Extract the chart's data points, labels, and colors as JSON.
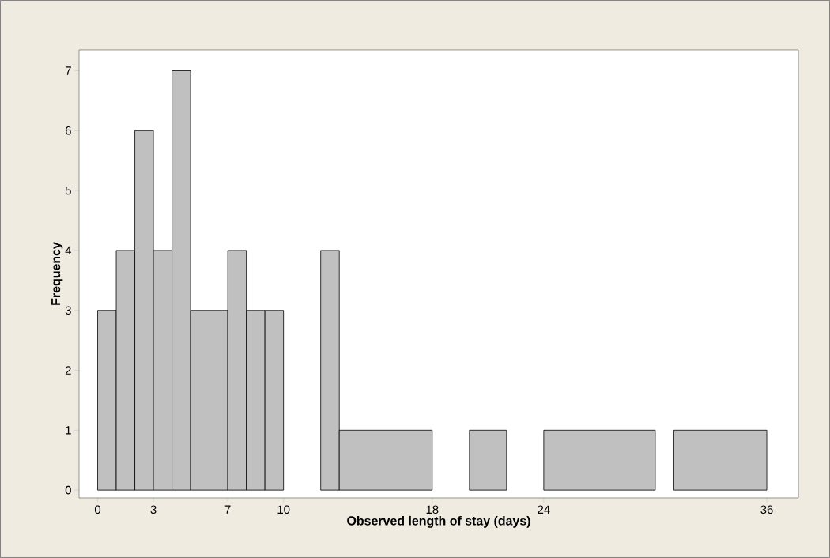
{
  "chart_data": {
    "type": "histogram",
    "xlabel": "Observed length of stay (days)",
    "ylabel": "Frequency",
    "bins": [
      0,
      1,
      2,
      3,
      4,
      5,
      7,
      8,
      9,
      10,
      12,
      13,
      18,
      20,
      22,
      24,
      30,
      31,
      36
    ],
    "values": [
      3,
      4,
      6,
      4,
      7,
      3,
      4,
      3,
      3,
      0,
      4,
      1,
      0,
      1,
      0,
      1,
      0,
      1
    ],
    "color": "#c0c0c0",
    "xlim": [
      -1,
      37.7
    ],
    "ylim": [
      -0.13,
      7.35
    ],
    "xticks": [
      0,
      3,
      7,
      10,
      18,
      24,
      36
    ],
    "yticks": [
      0,
      1,
      2,
      3,
      4,
      5,
      6,
      7
    ],
    "grid": false
  }
}
